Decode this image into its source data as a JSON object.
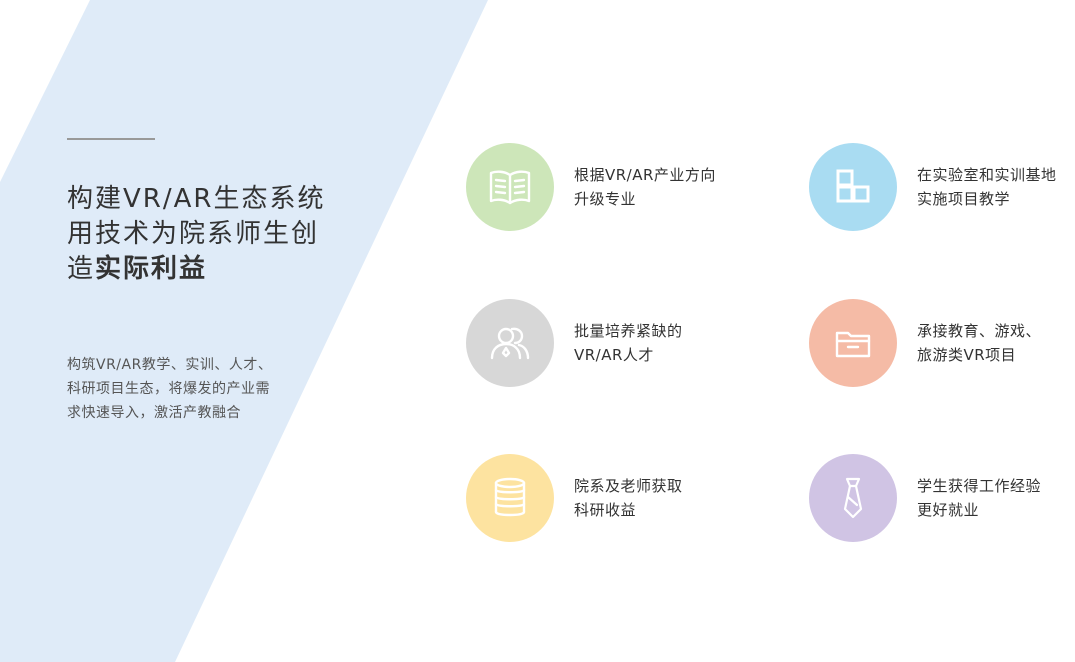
{
  "colors": {
    "background": "#ffffff",
    "stripe": "#dfebf8",
    "green": "#cde6b9",
    "blue": "#a9dcf2",
    "gray": "#d7d7d7",
    "salmon": "#f5bba6",
    "yellow": "#fde3a0",
    "purple": "#d0c4e4"
  },
  "hero": {
    "title_line1": "构建VR/AR生态系统",
    "title_line2": "用技术为院系师生创",
    "title_line3a": "造",
    "title_line3b": "实际利益",
    "desc_line1": "构筑VR/AR教学、实训、人才、",
    "desc_line2": "科研项目生态，将爆发的产业需",
    "desc_line3": "求快速导入，激活产教融合"
  },
  "features": [
    {
      "icon": "book-icon",
      "line1": "根据VR/AR产业方向",
      "line2": "升级专业"
    },
    {
      "icon": "blocks-icon",
      "line1": "在实验室和实训基地",
      "line2": "实施项目教学"
    },
    {
      "icon": "people-icon",
      "line1": "批量培养紧缺的",
      "line2": "VR/AR人才"
    },
    {
      "icon": "folder-icon",
      "line1": "承接教育、游戏、",
      "line2": "旅游类VR项目"
    },
    {
      "icon": "coins-icon",
      "line1": "院系及老师获取",
      "line2": "科研收益"
    },
    {
      "icon": "tie-icon",
      "line1": "学生获得工作经验",
      "line2": "更好就业"
    }
  ]
}
